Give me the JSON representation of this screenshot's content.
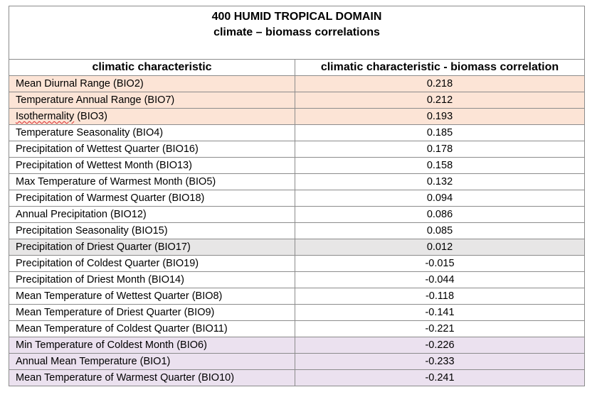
{
  "title": {
    "line1": "400 HUMID TROPICAL DOMAIN",
    "line2": "climate – biomass correlations"
  },
  "headers": {
    "col1": "climatic characteristic",
    "col2": "climatic characteristic - biomass correlation"
  },
  "colors": {
    "positive": "#fce4d6",
    "neutral": "#e7e6e6",
    "negative": "#ebe1ef",
    "plain": "#ffffff"
  },
  "rows": [
    {
      "name_pre": "Mean Diurnal Range (BIO2)",
      "name_spell": "",
      "name_post": "",
      "value": "0.218",
      "tone": "positive"
    },
    {
      "name_pre": "Temperature Annual Range (BIO7)",
      "name_spell": "",
      "name_post": "",
      "value": "0.212",
      "tone": "positive"
    },
    {
      "name_pre": "",
      "name_spell": "Isothermality",
      "name_post": " (BIO3)",
      "value": "0.193",
      "tone": "positive"
    },
    {
      "name_pre": "Temperature Seasonality (BIO4)",
      "name_spell": "",
      "name_post": "",
      "value": "0.185",
      "tone": "plain"
    },
    {
      "name_pre": "Precipitation of Wettest Quarter (BIO16)",
      "name_spell": "",
      "name_post": "",
      "value": "0.178",
      "tone": "plain"
    },
    {
      "name_pre": "Precipitation of Wettest Month (BIO13)",
      "name_spell": "",
      "name_post": "",
      "value": "0.158",
      "tone": "plain"
    },
    {
      "name_pre": "Max Temperature of Warmest Month (BIO5)",
      "name_spell": "",
      "name_post": "",
      "value": "0.132",
      "tone": "plain"
    },
    {
      "name_pre": "Precipitation of Warmest Quarter (BIO18)",
      "name_spell": "",
      "name_post": "",
      "value": "0.094",
      "tone": "plain"
    },
    {
      "name_pre": "Annual Precipitation (BIO12)",
      "name_spell": "",
      "name_post": "",
      "value": "0.086",
      "tone": "plain"
    },
    {
      "name_pre": "Precipitation Seasonality (BIO15)",
      "name_spell": "",
      "name_post": "",
      "value": "0.085",
      "tone": "plain"
    },
    {
      "name_pre": "Precipitation of Driest Quarter (BIO17)",
      "name_spell": "",
      "name_post": "",
      "value": "0.012",
      "tone": "neutral"
    },
    {
      "name_pre": "Precipitation of Coldest Quarter (BIO19)",
      "name_spell": "",
      "name_post": "",
      "value": "-0.015",
      "tone": "plain"
    },
    {
      "name_pre": "Precipitation of Driest Month (BIO14)",
      "name_spell": "",
      "name_post": "",
      "value": "-0.044",
      "tone": "plain"
    },
    {
      "name_pre": "Mean Temperature of Wettest Quarter (BIO8)",
      "name_spell": "",
      "name_post": "",
      "value": "-0.118",
      "tone": "plain"
    },
    {
      "name_pre": "Mean Temperature of Driest Quarter (BIO9)",
      "name_spell": "",
      "name_post": "",
      "value": "-0.141",
      "tone": "plain"
    },
    {
      "name_pre": "Mean Temperature of Coldest Quarter (BIO11)",
      "name_spell": "",
      "name_post": "",
      "value": "-0.221",
      "tone": "plain"
    },
    {
      "name_pre": "Min Temperature of Coldest Month (BIO6)",
      "name_spell": "",
      "name_post": "",
      "value": "-0.226",
      "tone": "negative"
    },
    {
      "name_pre": "Annual Mean Temperature (BIO1)",
      "name_spell": "",
      "name_post": "",
      "value": "-0.233",
      "tone": "negative"
    },
    {
      "name_pre": "Mean Temperature of Warmest Quarter (BIO10)",
      "name_spell": "",
      "name_post": "",
      "value": "-0.241",
      "tone": "negative"
    }
  ]
}
